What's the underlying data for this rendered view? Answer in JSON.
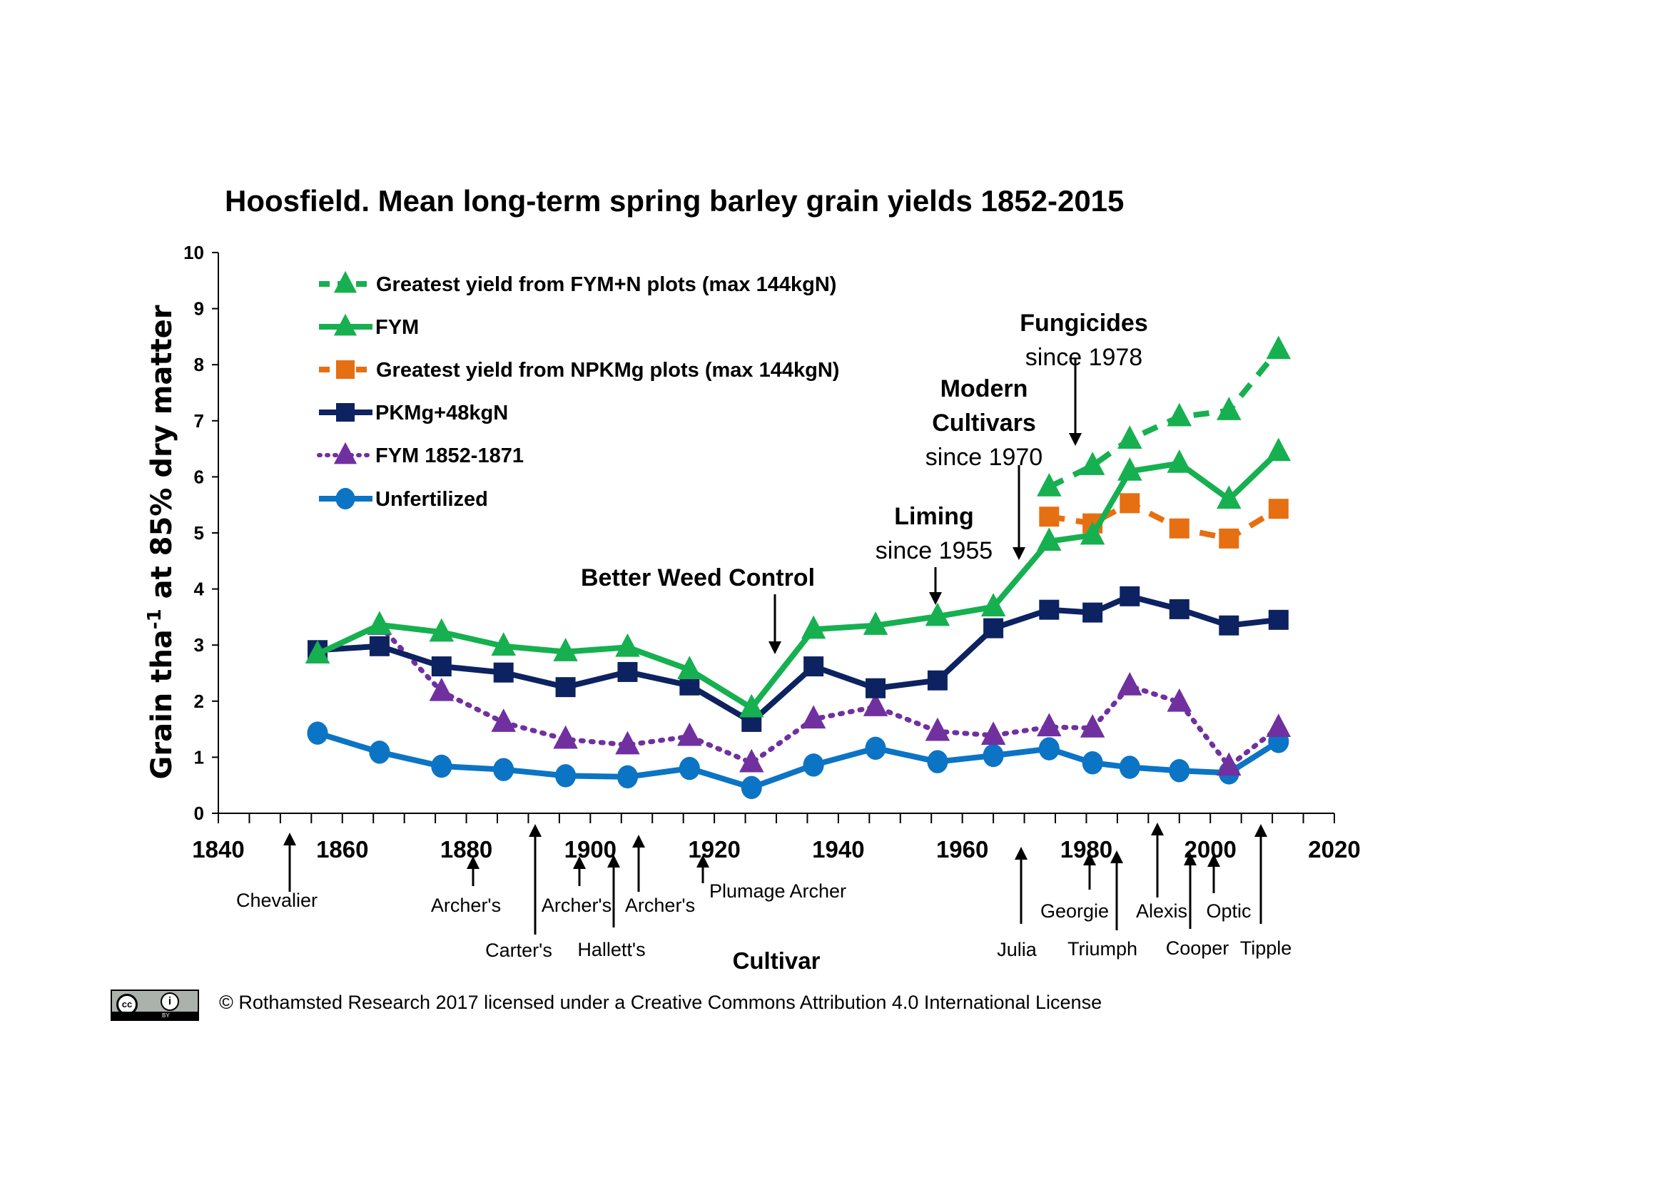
{
  "chart_data": {
    "type": "line",
    "title": "Hoosfield. Mean long-term spring barley grain yields 1852-2015",
    "xlabel": "Cultivar",
    "ylabel": {
      "main": "Grain tha",
      "sup": "-1",
      "rest": " at 85% dry matter"
    },
    "xlim": [
      1840,
      2020
    ],
    "ylim": [
      0,
      10
    ],
    "x_ticks": [
      1840,
      1860,
      1880,
      1900,
      1920,
      1940,
      1960,
      1980,
      2000,
      2020
    ],
    "x_minor_step": 5,
    "y_ticks": [
      0,
      1,
      2,
      3,
      4,
      5,
      6,
      7,
      8,
      9,
      10
    ],
    "grid": false,
    "legend_position": "top-left",
    "series": [
      {
        "name": "Greatest yield from FYM+N plots (max 144kgN)",
        "color": "#16b050",
        "dash": "dashed",
        "marker": "triangle",
        "x": [
          1974,
          1981,
          1987,
          1995,
          2003,
          2011
        ],
        "y": [
          5.82,
          6.2,
          6.67,
          7.07,
          7.18,
          8.27
        ]
      },
      {
        "name": "FYM",
        "color": "#16b050",
        "dash": "solid",
        "marker": "triangle",
        "x": [
          1856,
          1866,
          1876,
          1886,
          1896,
          1906,
          1916,
          1926,
          1936,
          1946,
          1956,
          1965,
          1974,
          1981,
          1987,
          1995,
          2003,
          2011
        ],
        "y": [
          2.84,
          3.36,
          3.23,
          2.98,
          2.88,
          2.96,
          2.56,
          1.88,
          3.28,
          3.35,
          3.51,
          3.68,
          4.85,
          4.96,
          6.1,
          6.24,
          5.6,
          6.45
        ]
      },
      {
        "name": "Greatest yield from NPKMg plots (max 144kgN)",
        "color": "#e66f12",
        "dash": "dashed",
        "marker": "square",
        "x": [
          1974,
          1981,
          1987,
          1995,
          2003,
          2011
        ],
        "y": [
          5.29,
          5.17,
          5.53,
          5.08,
          4.9,
          5.43
        ]
      },
      {
        "name": "PKMg+48kgN",
        "color": "#0d2260",
        "dash": "solid",
        "marker": "square",
        "x": [
          1856,
          1866,
          1876,
          1886,
          1896,
          1906,
          1916,
          1926,
          1936,
          1946,
          1956,
          1965,
          1974,
          1981,
          1987,
          1995,
          2003,
          2011
        ],
        "y": [
          2.91,
          2.98,
          2.62,
          2.51,
          2.25,
          2.52,
          2.28,
          1.63,
          2.62,
          2.23,
          2.37,
          3.3,
          3.63,
          3.58,
          3.87,
          3.64,
          3.35,
          3.45
        ]
      },
      {
        "name": "FYM 1852-1871",
        "color": "#7030a0",
        "dash": "dotted",
        "marker": "triangle",
        "x": [
          1866,
          1876,
          1886,
          1896,
          1906,
          1916,
          1926,
          1936,
          1946,
          1956,
          1965,
          1974,
          1981,
          1987,
          1995,
          2003,
          2011
        ],
        "y": [
          3.35,
          2.17,
          1.62,
          1.32,
          1.22,
          1.37,
          0.9,
          1.68,
          1.9,
          1.46,
          1.39,
          1.54,
          1.52,
          2.27,
          1.98,
          0.84,
          1.53
        ]
      },
      {
        "name": "Unfertilized",
        "color": "#0c74c4",
        "dash": "solid",
        "marker": "circle",
        "x": [
          1856,
          1866,
          1876,
          1886,
          1896,
          1906,
          1916,
          1926,
          1936,
          1946,
          1956,
          1965,
          1974,
          1981,
          1987,
          1995,
          2003,
          2011
        ],
        "y": [
          1.43,
          1.09,
          0.84,
          0.78,
          0.67,
          0.65,
          0.8,
          0.46,
          0.86,
          1.16,
          0.92,
          1.03,
          1.15,
          0.9,
          0.82,
          0.76,
          0.72,
          1.28
        ]
      }
    ],
    "annotations": [
      {
        "bold": "Better Weed Control",
        "normal": "",
        "year": 1930,
        "arrow_to_value": 2.85
      },
      {
        "bold": "Liming",
        "normal": "since 1955",
        "year": 1955,
        "arrow_to_value": 3.75
      },
      {
        "bold": "Modern Cultivars",
        "normal": "since 1970",
        "year": 1970,
        "arrow_to_value": 4.6
      },
      {
        "bold": "Fungicides",
        "normal": "since 1978",
        "year": 1978,
        "arrow_to_value": 6.55
      }
    ],
    "cultivars": [
      {
        "name": "Chevalier",
        "year": 1852
      },
      {
        "name": "Archer's",
        "year": 1881
      },
      {
        "name": "Carter's",
        "year": 1891
      },
      {
        "name": "Archer's",
        "year": 1898
      },
      {
        "name": "Hallett's",
        "year": 1904
      },
      {
        "name": "Archer's",
        "year": 1908
      },
      {
        "name": "Plumage Archer",
        "year": 1918
      },
      {
        "name": "Julia",
        "year": 1969
      },
      {
        "name": "Georgie",
        "year": 1980
      },
      {
        "name": "Triumph",
        "year": 1984
      },
      {
        "name": "Alexis",
        "year": 1991
      },
      {
        "name": "Cooper",
        "year": 1997
      },
      {
        "name": "Optic",
        "year": 2001
      },
      {
        "name": "Tipple",
        "year": 2008
      }
    ]
  },
  "footer": {
    "cc_label": "cc",
    "by_icon": "i",
    "by_label": "BY",
    "license_text": "© Rothamsted Research 2017 licensed under a Creative Commons Attribution 4.0 International License"
  }
}
